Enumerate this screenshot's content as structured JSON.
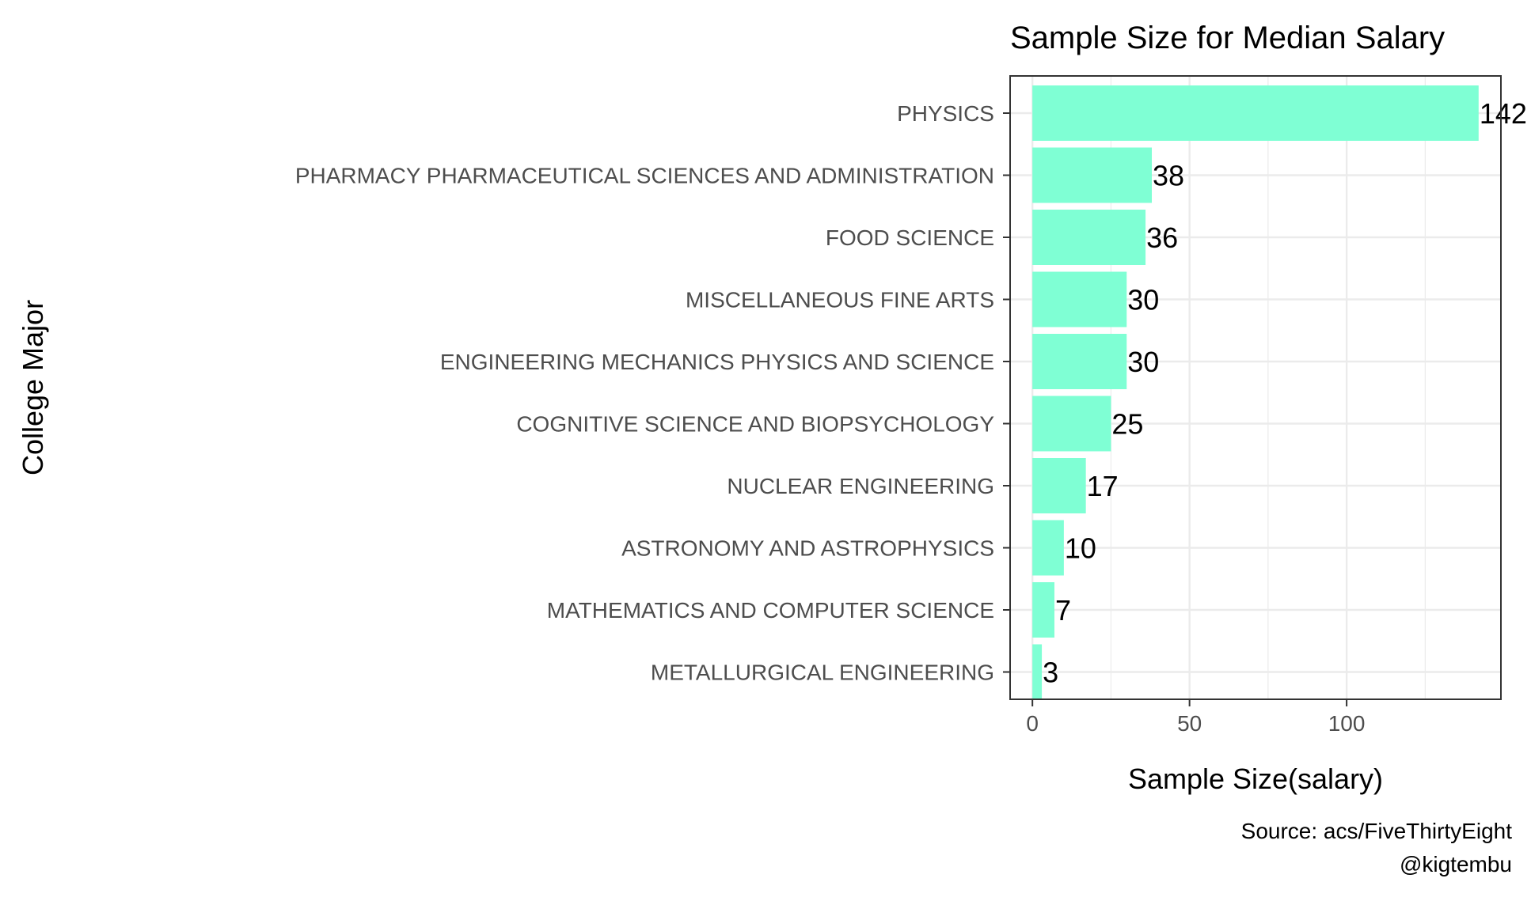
{
  "chart_data": {
    "type": "bar",
    "orientation": "horizontal",
    "title": "Sample Size for Median Salary",
    "xlabel": "Sample Size(salary)",
    "ylabel": "College Major",
    "caption_lines": [
      "Source: acs/FiveThirtyEight",
      "@kigtembu"
    ],
    "categories": [
      "PHYSICS",
      "PHARMACY PHARMACEUTICAL SCIENCES AND ADMINISTRATION",
      "FOOD SCIENCE",
      "MISCELLANEOUS FINE ARTS",
      "ENGINEERING MECHANICS PHYSICS AND SCIENCE",
      "COGNITIVE SCIENCE AND BIOPSYCHOLOGY",
      "NUCLEAR ENGINEERING",
      "ASTRONOMY AND ASTROPHYSICS",
      "MATHEMATICS AND COMPUTER SCIENCE",
      "METALLURGICAL ENGINEERING"
    ],
    "values": [
      142,
      38,
      36,
      30,
      30,
      25,
      17,
      10,
      7,
      3
    ],
    "data_labels": [
      "142",
      "38",
      "36",
      "30",
      "30",
      "25",
      "17",
      "10",
      "7",
      "3"
    ],
    "xlim": [
      -7.1,
      149.1
    ],
    "x_ticks": [
      0,
      50,
      100
    ],
    "x_tick_labels": [
      "0",
      "50",
      "100"
    ],
    "bar_color": "#7fffd4",
    "grid": true,
    "legend": "none"
  }
}
